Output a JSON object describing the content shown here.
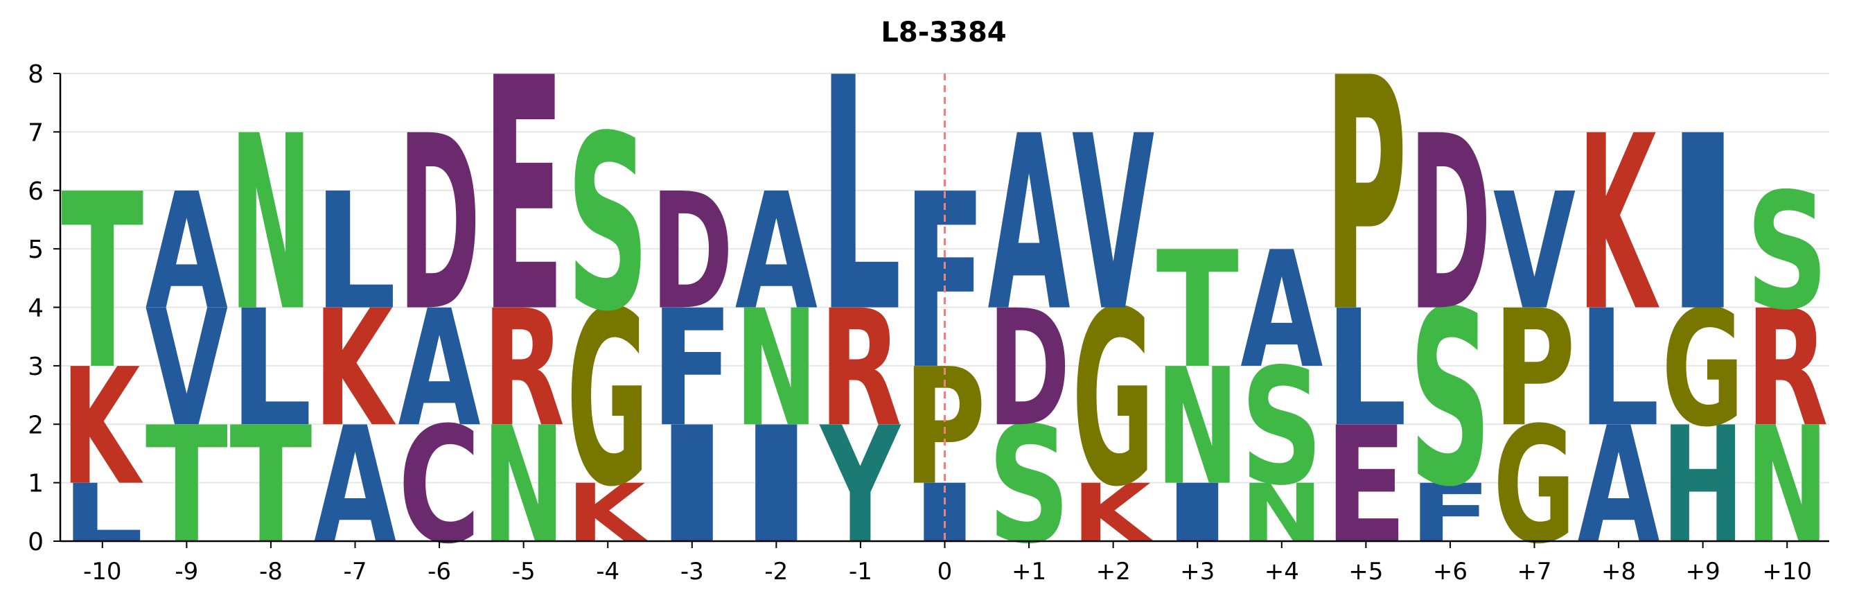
{
  "chart_data": {
    "type": "sequence-logo",
    "title": "L8-3384",
    "xlabel": "",
    "ylabel": "",
    "ylim": [
      0,
      8
    ],
    "y_ticks": [
      "0",
      "1",
      "2",
      "3",
      "4",
      "5",
      "6",
      "7",
      "8"
    ],
    "grid": true,
    "x_positions": [
      "-10",
      "-9",
      "-8",
      "-7",
      "-6",
      "-5",
      "-4",
      "-3",
      "-2",
      "-1",
      "0",
      "+1",
      "+2",
      "+3",
      "+4",
      "+5",
      "+6",
      "+7",
      "+8",
      "+9",
      "+10"
    ],
    "center_marker": "0",
    "colors": {
      "blue": "#235A9C",
      "green": "#3FB845",
      "red": "#C03222",
      "purple": "#6B2A6D",
      "olive": "#777700",
      "teal": "#1B7B74",
      "center_line": "#F08080"
    },
    "stacks": [
      {
        "position": "-10",
        "letters": [
          {
            "letter": "L",
            "from": 0,
            "to": 1,
            "color": "blue"
          },
          {
            "letter": "K",
            "from": 1,
            "to": 3,
            "color": "red"
          },
          {
            "letter": "T",
            "from": 3,
            "to": 6,
            "color": "green"
          }
        ]
      },
      {
        "position": "-9",
        "letters": [
          {
            "letter": "T",
            "from": 0,
            "to": 2,
            "color": "green"
          },
          {
            "letter": "V",
            "from": 2,
            "to": 4,
            "color": "blue"
          },
          {
            "letter": "A",
            "from": 4,
            "to": 6,
            "color": "blue"
          }
        ]
      },
      {
        "position": "-8",
        "letters": [
          {
            "letter": "T",
            "from": 0,
            "to": 2,
            "color": "green"
          },
          {
            "letter": "L",
            "from": 2,
            "to": 4,
            "color": "blue"
          },
          {
            "letter": "N",
            "from": 4,
            "to": 7,
            "color": "green"
          }
        ]
      },
      {
        "position": "-7",
        "letters": [
          {
            "letter": "A",
            "from": 0,
            "to": 2,
            "color": "blue"
          },
          {
            "letter": "K",
            "from": 2,
            "to": 4,
            "color": "red"
          },
          {
            "letter": "L",
            "from": 4,
            "to": 6,
            "color": "blue"
          }
        ]
      },
      {
        "position": "-6",
        "letters": [
          {
            "letter": "C",
            "from": 0,
            "to": 2,
            "color": "purple"
          },
          {
            "letter": "A",
            "from": 2,
            "to": 4,
            "color": "blue"
          },
          {
            "letter": "D",
            "from": 4,
            "to": 7,
            "color": "purple"
          }
        ]
      },
      {
        "position": "-5",
        "letters": [
          {
            "letter": "N",
            "from": 0,
            "to": 2,
            "color": "green"
          },
          {
            "letter": "R",
            "from": 2,
            "to": 4,
            "color": "red"
          },
          {
            "letter": "E",
            "from": 4,
            "to": 8,
            "color": "purple"
          }
        ]
      },
      {
        "position": "-4",
        "letters": [
          {
            "letter": "K",
            "from": 0,
            "to": 1,
            "color": "red"
          },
          {
            "letter": "G",
            "from": 1,
            "to": 4,
            "color": "olive"
          },
          {
            "letter": "S",
            "from": 4,
            "to": 7,
            "color": "green"
          }
        ]
      },
      {
        "position": "-3",
        "letters": [
          {
            "letter": "I",
            "from": 0,
            "to": 2,
            "color": "blue"
          },
          {
            "letter": "F",
            "from": 2,
            "to": 4,
            "color": "blue"
          },
          {
            "letter": "D",
            "from": 4,
            "to": 6,
            "color": "purple"
          }
        ]
      },
      {
        "position": "-2",
        "letters": [
          {
            "letter": "I",
            "from": 0,
            "to": 2,
            "color": "blue"
          },
          {
            "letter": "N",
            "from": 2,
            "to": 4,
            "color": "green"
          },
          {
            "letter": "A",
            "from": 4,
            "to": 6,
            "color": "blue"
          }
        ]
      },
      {
        "position": "-1",
        "letters": [
          {
            "letter": "Y",
            "from": 0,
            "to": 2,
            "color": "teal"
          },
          {
            "letter": "R",
            "from": 2,
            "to": 4,
            "color": "red"
          },
          {
            "letter": "L",
            "from": 4,
            "to": 8,
            "color": "blue"
          }
        ]
      },
      {
        "position": "0",
        "letters": [
          {
            "letter": "I",
            "from": 0,
            "to": 1,
            "color": "blue"
          },
          {
            "letter": "P",
            "from": 1,
            "to": 3,
            "color": "olive"
          },
          {
            "letter": "F",
            "from": 3,
            "to": 6,
            "color": "blue"
          }
        ]
      },
      {
        "position": "+1",
        "letters": [
          {
            "letter": "S",
            "from": 0,
            "to": 2,
            "color": "green"
          },
          {
            "letter": "D",
            "from": 2,
            "to": 4,
            "color": "purple"
          },
          {
            "letter": "A",
            "from": 4,
            "to": 7,
            "color": "blue"
          }
        ]
      },
      {
        "position": "+2",
        "letters": [
          {
            "letter": "K",
            "from": 0,
            "to": 1,
            "color": "red"
          },
          {
            "letter": "G",
            "from": 1,
            "to": 4,
            "color": "olive"
          },
          {
            "letter": "V",
            "from": 4,
            "to": 7,
            "color": "blue"
          }
        ]
      },
      {
        "position": "+3",
        "letters": [
          {
            "letter": "I",
            "from": 0,
            "to": 1,
            "color": "blue"
          },
          {
            "letter": "N",
            "from": 1,
            "to": 3,
            "color": "green"
          },
          {
            "letter": "T",
            "from": 3,
            "to": 5,
            "color": "green"
          }
        ]
      },
      {
        "position": "+4",
        "letters": [
          {
            "letter": "N",
            "from": 0,
            "to": 1,
            "color": "green"
          },
          {
            "letter": "S",
            "from": 1,
            "to": 3,
            "color": "green"
          },
          {
            "letter": "A",
            "from": 3,
            "to": 5,
            "color": "blue"
          }
        ]
      },
      {
        "position": "+5",
        "letters": [
          {
            "letter": "E",
            "from": 0,
            "to": 2,
            "color": "purple"
          },
          {
            "letter": "L",
            "from": 2,
            "to": 4,
            "color": "blue"
          },
          {
            "letter": "P",
            "from": 4,
            "to": 8,
            "color": "olive"
          }
        ]
      },
      {
        "position": "+6",
        "letters": [
          {
            "letter": "F",
            "from": 0,
            "to": 1,
            "color": "blue"
          },
          {
            "letter": "S",
            "from": 1,
            "to": 4,
            "color": "green"
          },
          {
            "letter": "D",
            "from": 4,
            "to": 7,
            "color": "purple"
          }
        ]
      },
      {
        "position": "+7",
        "letters": [
          {
            "letter": "G",
            "from": 0,
            "to": 2,
            "color": "olive"
          },
          {
            "letter": "P",
            "from": 2,
            "to": 4,
            "color": "olive"
          },
          {
            "letter": "V",
            "from": 4,
            "to": 6,
            "color": "blue"
          }
        ]
      },
      {
        "position": "+8",
        "letters": [
          {
            "letter": "A",
            "from": 0,
            "to": 2,
            "color": "blue"
          },
          {
            "letter": "L",
            "from": 2,
            "to": 4,
            "color": "blue"
          },
          {
            "letter": "K",
            "from": 4,
            "to": 7,
            "color": "red"
          }
        ]
      },
      {
        "position": "+9",
        "letters": [
          {
            "letter": "H",
            "from": 0,
            "to": 2,
            "color": "teal"
          },
          {
            "letter": "G",
            "from": 2,
            "to": 4,
            "color": "olive"
          },
          {
            "letter": "I",
            "from": 4,
            "to": 7,
            "color": "blue"
          }
        ]
      },
      {
        "position": "+10",
        "letters": [
          {
            "letter": "N",
            "from": 0,
            "to": 2,
            "color": "green"
          },
          {
            "letter": "R",
            "from": 2,
            "to": 4,
            "color": "red"
          },
          {
            "letter": "S",
            "from": 4,
            "to": 6,
            "color": "green"
          }
        ]
      }
    ]
  }
}
